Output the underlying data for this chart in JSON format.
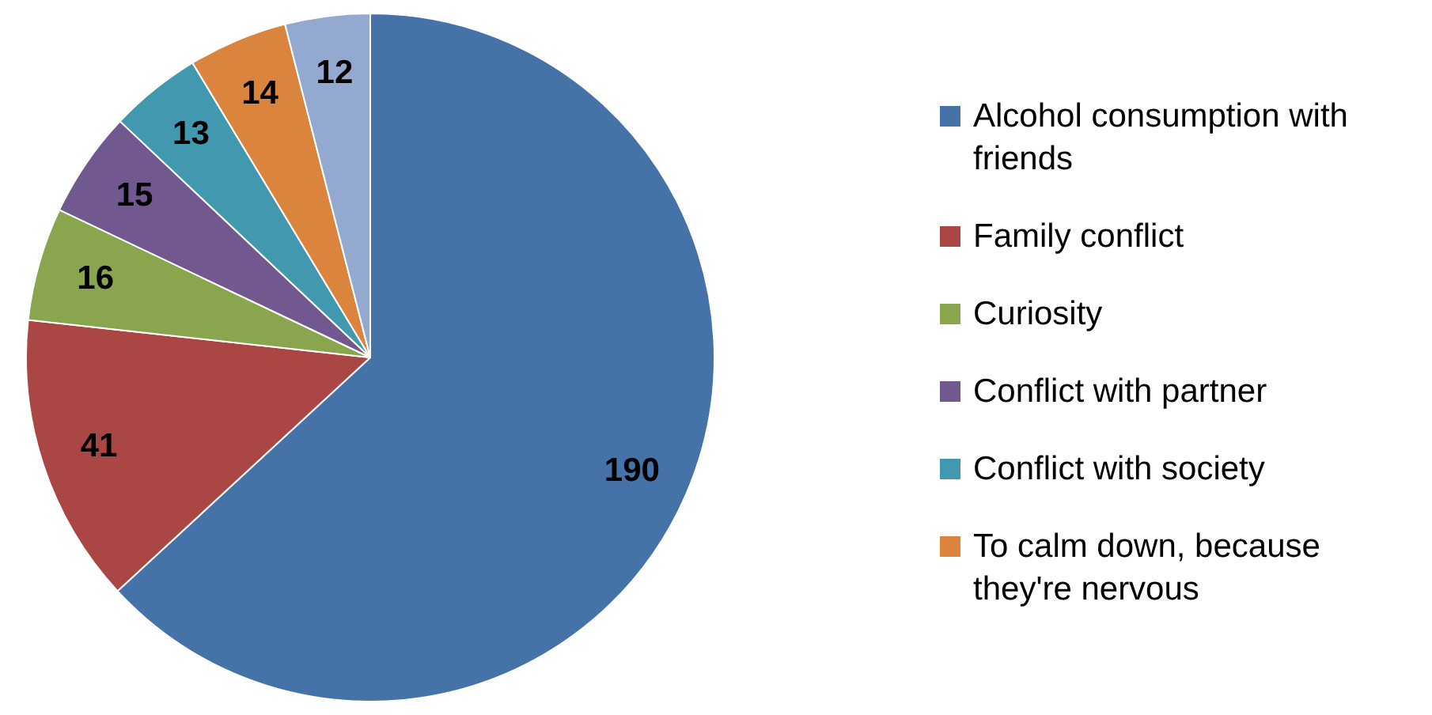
{
  "chart_data": {
    "type": "pie",
    "categories": [
      "Alcohol consumption with friends",
      "Family conflict",
      "Curiosity",
      "Conflict with partner",
      "Conflict with society",
      "To calm down, because they're nervous",
      null
    ],
    "values": [
      190,
      41,
      16,
      15,
      13,
      14,
      12
    ],
    "colors": [
      "#4572a7",
      "#aa4643",
      "#89a54e",
      "#71588f",
      "#4198af",
      "#db843d",
      "#93a9cf"
    ],
    "data_labels": true,
    "legend": "right"
  }
}
